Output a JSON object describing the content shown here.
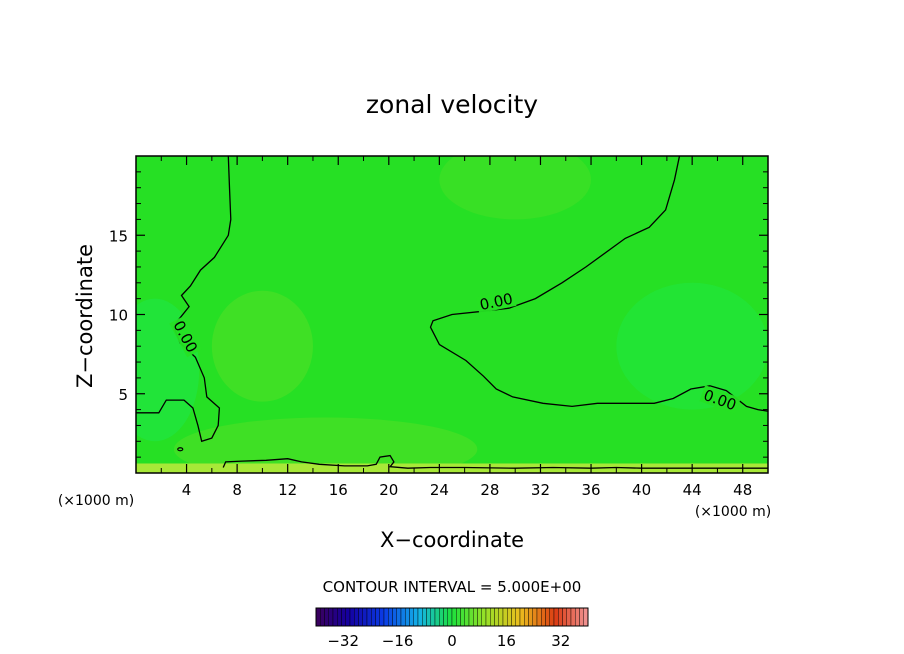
{
  "chart_data": {
    "type": "heatmap",
    "title": "zonal velocity",
    "xlabel": "X−coordinate",
    "ylabel": "Z−coordinate",
    "x_unit": "(×1000 m)",
    "y_unit": "(×1000 m)",
    "xlim": [
      0,
      50
    ],
    "ylim": [
      0,
      20
    ],
    "x_ticks": [
      4,
      8,
      12,
      16,
      20,
      24,
      28,
      32,
      36,
      40,
      44,
      48
    ],
    "x_tick_labels": [
      "4",
      "8",
      "12",
      "16",
      "20",
      "24",
      "28",
      "32",
      "36",
      "40",
      "44",
      "48"
    ],
    "y_ticks": [
      5,
      10,
      15
    ],
    "y_tick_labels": [
      "5",
      "10",
      "15"
    ],
    "contour_level": 0,
    "contour_labels": [
      "0.00",
      "0.00",
      "0.00"
    ],
    "contour_interval_text": "CONTOUR INTERVAL = 5.000E+00",
    "colorbar": {
      "min": -40,
      "max": 40,
      "ticks": [
        -32,
        -16,
        0,
        16,
        32
      ],
      "tick_labels": [
        "−32",
        "−16",
        "0",
        "16",
        "32"
      ]
    },
    "colors": {
      "field": "#26e024",
      "field_negative": "#1ee84a",
      "field_positive": "#6fe028",
      "surface_layer": "#a8e838",
      "contour": "#000000"
    },
    "contour_zero_lines": [
      [
        [
          7.3,
          20
        ],
        [
          7.4,
          18
        ],
        [
          7.5,
          16
        ],
        [
          7.3,
          15
        ],
        [
          6.2,
          13.6
        ],
        [
          5.1,
          12.8
        ],
        [
          4.3,
          11.8
        ],
        [
          3.6,
          11.2
        ],
        [
          4.2,
          10.5
        ],
        [
          3.3,
          9.6
        ],
        [
          3.0,
          9.2
        ],
        [
          3.5,
          8.2
        ],
        [
          4.7,
          7.3
        ],
        [
          5.4,
          6.0
        ],
        [
          5.6,
          4.8
        ],
        [
          6.6,
          4.1
        ],
        [
          6.5,
          3.0
        ],
        [
          6.0,
          2.2
        ],
        [
          5.2,
          2.0
        ],
        [
          4.9,
          3.0
        ],
        [
          4.5,
          4.1
        ],
        [
          3.8,
          4.6
        ],
        [
          2.4,
          4.6
        ],
        [
          1.8,
          3.8
        ],
        [
          0,
          3.8
        ]
      ],
      [
        [
          43.0,
          20
        ],
        [
          42.6,
          18.5
        ],
        [
          41.9,
          16.6
        ],
        [
          40.6,
          15.5
        ],
        [
          38.7,
          14.8
        ],
        [
          35.6,
          13.0
        ],
        [
          33.7,
          12.0
        ],
        [
          31.6,
          11.0
        ],
        [
          29.5,
          10.4
        ],
        [
          27.4,
          10.2
        ],
        [
          25.0,
          10.0
        ],
        [
          23.5,
          9.6
        ],
        [
          23.3,
          9.2
        ],
        [
          24.0,
          8.1
        ],
        [
          26.1,
          7.1
        ],
        [
          27.5,
          6.1
        ],
        [
          28.5,
          5.3
        ],
        [
          29.8,
          4.8
        ],
        [
          32.2,
          4.4
        ],
        [
          34.5,
          4.2
        ],
        [
          36.5,
          4.4
        ],
        [
          38.8,
          4.4
        ],
        [
          41.0,
          4.4
        ],
        [
          42.5,
          4.7
        ],
        [
          43.9,
          5.3
        ],
        [
          45.4,
          5.5
        ],
        [
          46.7,
          5.2
        ],
        [
          48.3,
          4.2
        ],
        [
          49.2,
          4.0
        ],
        [
          50,
          3.9
        ]
      ],
      [
        [
          6.9,
          0.35
        ],
        [
          7.1,
          0.7
        ],
        [
          8.4,
          0.75
        ],
        [
          10.3,
          0.8
        ],
        [
          12.0,
          0.9
        ],
        [
          13.1,
          0.7
        ],
        [
          14.5,
          0.55
        ],
        [
          16.5,
          0.45
        ],
        [
          18.3,
          0.45
        ],
        [
          19.0,
          0.55
        ],
        [
          19.3,
          1.0
        ],
        [
          20.1,
          1.1
        ],
        [
          20.4,
          0.7
        ],
        [
          20.1,
          0.4
        ],
        [
          21.5,
          0.3
        ],
        [
          23.3,
          0.35
        ],
        [
          26.0,
          0.35
        ],
        [
          30.0,
          0.3
        ],
        [
          33.0,
          0.35
        ],
        [
          36.0,
          0.3
        ],
        [
          38.0,
          0.35
        ],
        [
          40.0,
          0.3
        ],
        [
          42.0,
          0.3
        ],
        [
          44.0,
          0.3
        ],
        [
          46.0,
          0.3
        ],
        [
          48.0,
          0.3
        ],
        [
          50,
          0.3
        ]
      ]
    ]
  }
}
